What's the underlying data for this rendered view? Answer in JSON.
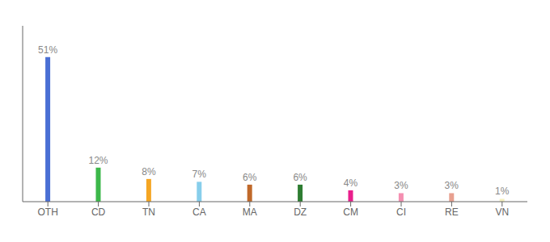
{
  "chart_data": {
    "type": "bar",
    "categories": [
      "OTH",
      "CD",
      "TN",
      "CA",
      "MA",
      "DZ",
      "CM",
      "CI",
      "RE",
      "VN"
    ],
    "values": [
      51,
      12,
      8,
      7,
      6,
      6,
      4,
      3,
      3,
      1
    ],
    "value_labels": [
      "51%",
      "12%",
      "8%",
      "7%",
      "6%",
      "6%",
      "4%",
      "3%",
      "3%",
      "1%"
    ],
    "data_labels": true,
    "colors": [
      "#4a6fd4",
      "#3cb84a",
      "#f5a623",
      "#87ceeb",
      "#c0692a",
      "#2e7d32",
      "#e91e8c",
      "#f48fb1",
      "#e8a090",
      "#f5f0c0"
    ],
    "ylim": [
      0,
      62
    ],
    "tick_labels": "x",
    "grid": false
  }
}
